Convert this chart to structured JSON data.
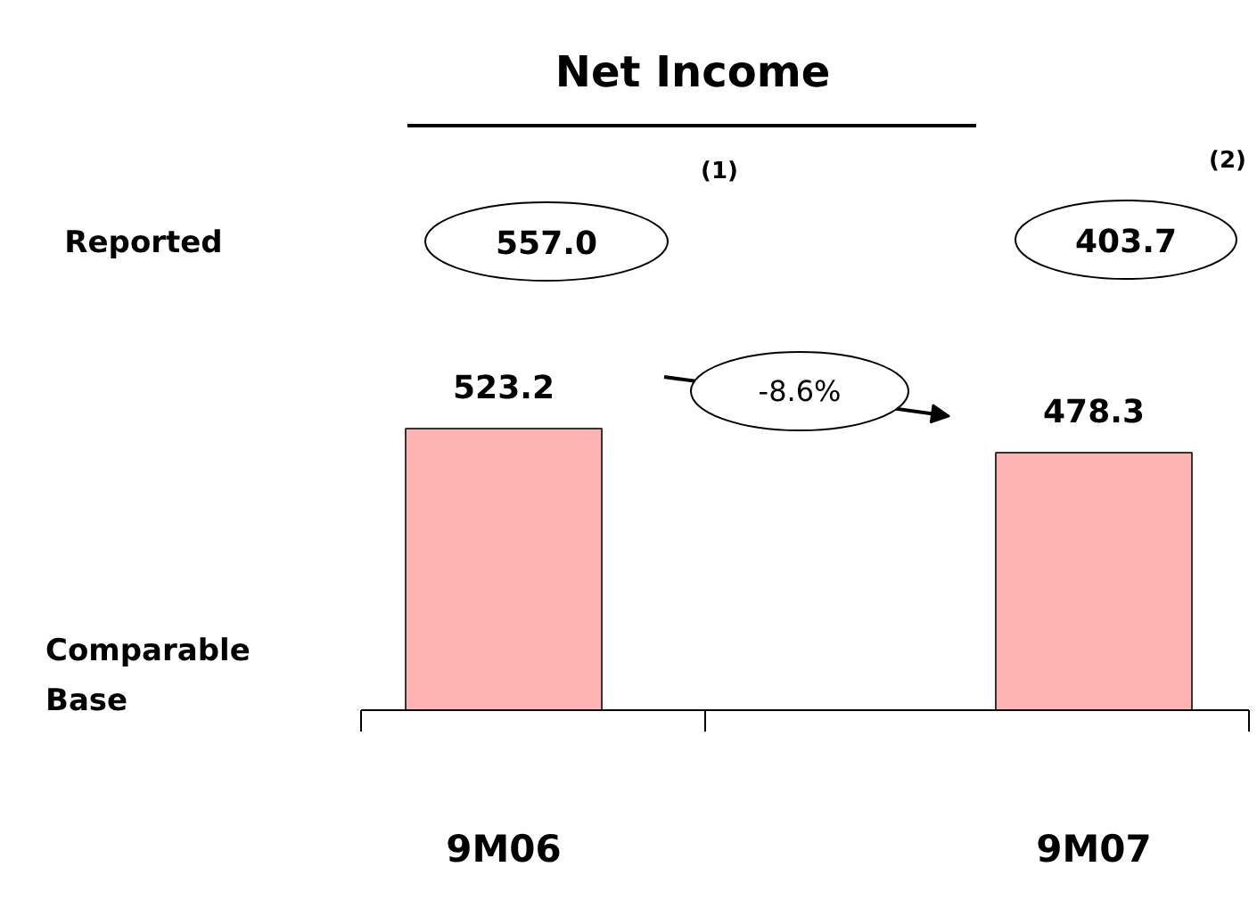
{
  "chart_data": {
    "type": "bar",
    "title": "Net Income",
    "categories": [
      "9M06",
      "9M07"
    ],
    "values": [
      523.2,
      478.3
    ],
    "color": "#ffb3b3",
    "data_labels": true,
    "annotations": [
      "Reported",
      "557.0",
      "(1)",
      "403.7",
      "(2)",
      "-8.6%",
      "Comparable\nBase"
    ]
  }
}
